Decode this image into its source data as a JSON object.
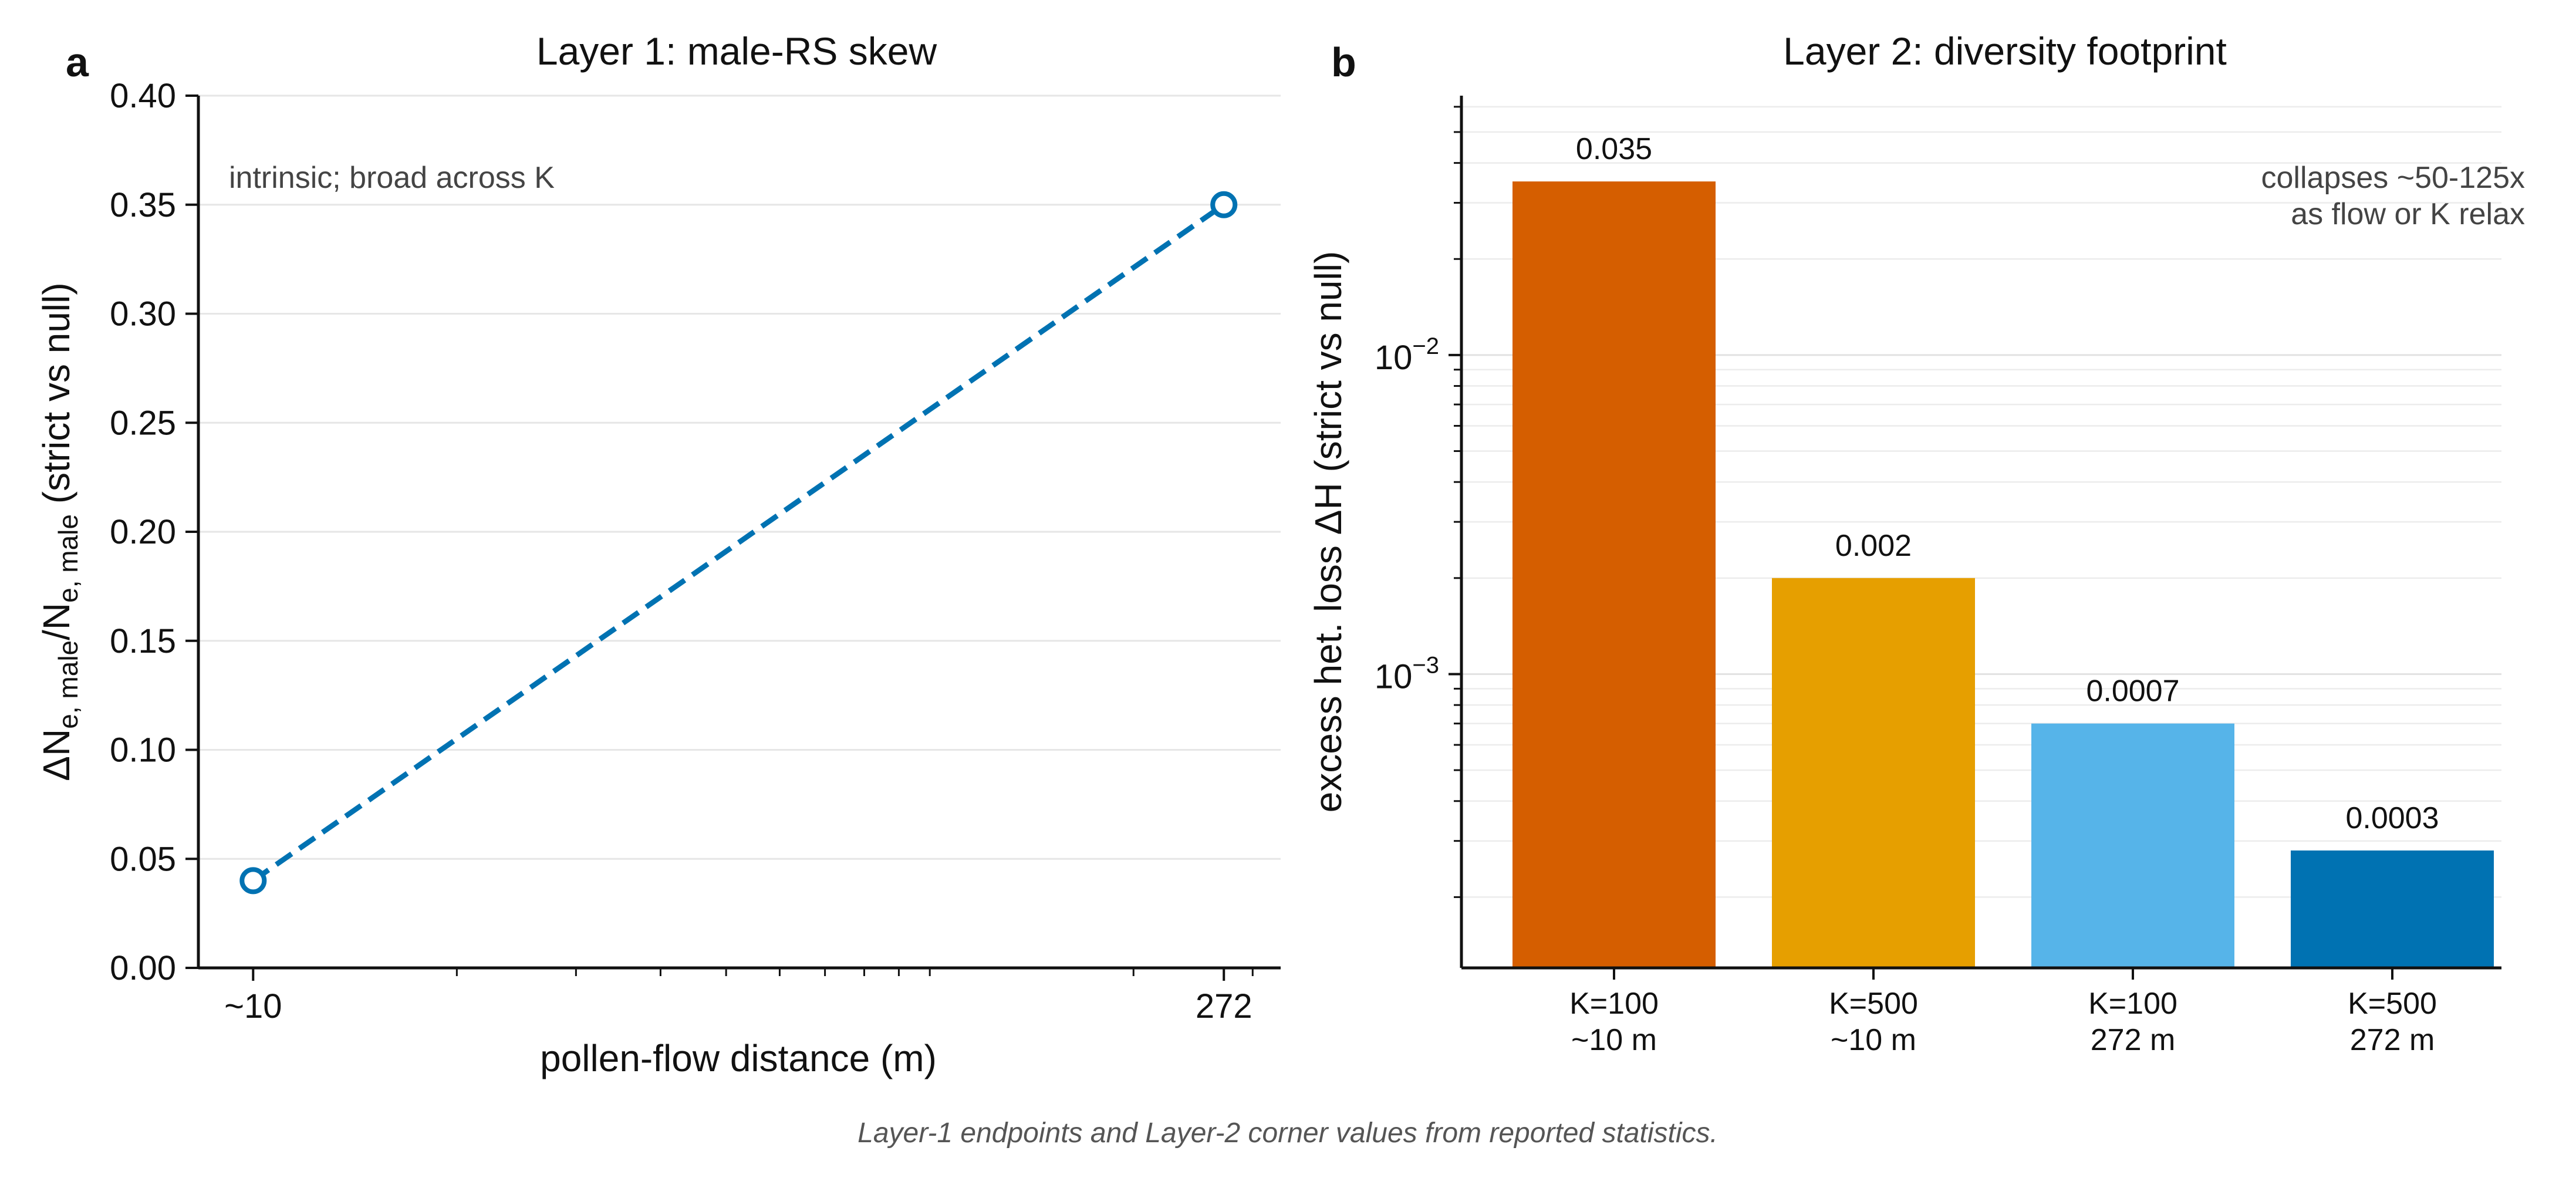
{
  "panels": {
    "a": {
      "letter": "a"
    },
    "b": {
      "letter": "b"
    }
  },
  "caption": "Layer-1 endpoints and Layer-2 corner values from reported statistics.",
  "chart_data": [
    {
      "type": "line",
      "title": "Layer 1: male-RS skew",
      "xlabel": "pollen-flow distance (m)",
      "ylabel_parts": {
        "delta": "ΔN",
        "sub1": "e, male",
        "slash": "/N",
        "sub2": "e, male",
        "rest": " (strict vs null)"
      },
      "xscale": "log",
      "xlim": [
        8.3,
        330
      ],
      "ylim": [
        0.0,
        0.4
      ],
      "yticks": [
        "0.00",
        "0.05",
        "0.10",
        "0.15",
        "0.20",
        "0.25",
        "0.30",
        "0.35",
        "0.40"
      ],
      "xticks": [
        {
          "value": 10,
          "label": "~10"
        },
        {
          "value": 272,
          "label": "272"
        }
      ],
      "grid": "horizontal",
      "annotation": "intrinsic; broad across K",
      "series": [
        {
          "x": [
            10,
            272
          ],
          "y": [
            0.04,
            0.35
          ],
          "color": "#0072B2",
          "linestyle": "dashed",
          "marker": "open-circle"
        }
      ]
    },
    {
      "type": "bar",
      "title": "Layer 2: diversity footprint",
      "ylabel": "excess het. loss ΔH (strict vs null)",
      "yscale": "log",
      "ylim": [
        0.00012,
        0.065
      ],
      "yticks": [
        {
          "value": 0.01,
          "base": "10",
          "exp": "−2"
        },
        {
          "value": 0.001,
          "base": "10",
          "exp": "−3"
        }
      ],
      "grid": "horizontal",
      "annotation": [
        "collapses ~50-125x",
        "as flow or K relax"
      ],
      "categories": [
        [
          "K=100",
          "~10 m"
        ],
        [
          "K=500",
          "~10 m"
        ],
        [
          "K=100",
          "272 m"
        ],
        [
          "K=500",
          "272 m"
        ]
      ],
      "values": [
        0.035,
        0.002,
        0.0007,
        0.00028
      ],
      "value_labels": [
        "0.035",
        "0.002",
        "0.0007",
        "0.0003"
      ],
      "colors": [
        "#D55E00",
        "#E69F00",
        "#56B4E9",
        "#0072B2"
      ]
    }
  ]
}
